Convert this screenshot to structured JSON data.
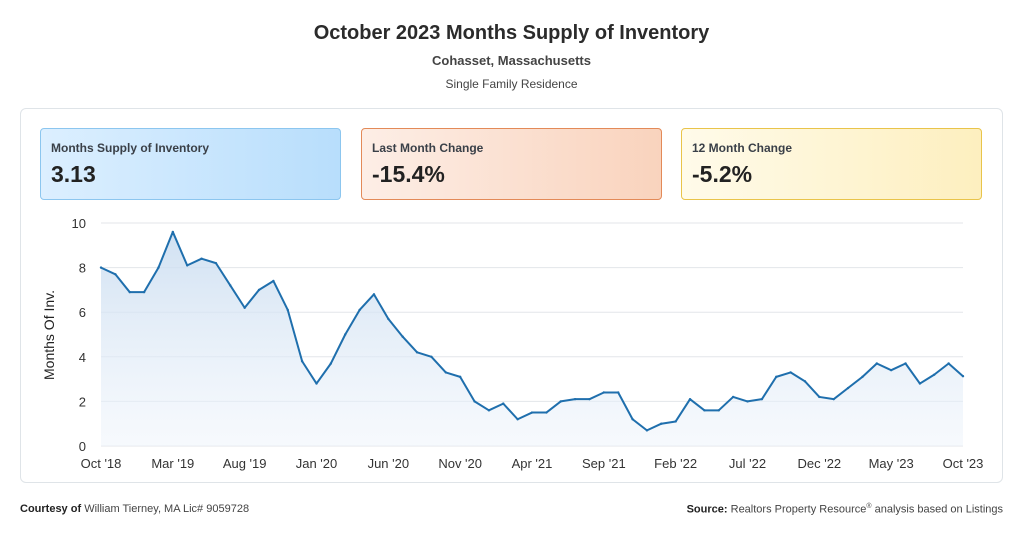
{
  "header": {
    "title": "October 2023 Months Supply of Inventory",
    "subtitle": "Cohasset, Massachusetts",
    "property_type": "Single Family Residence"
  },
  "cards": [
    {
      "label": "Months Supply of Inventory",
      "value": "3.13",
      "color": "#b8defc"
    },
    {
      "label": "Last Month Change",
      "value": "-15.4%",
      "color": "#f9d3bd"
    },
    {
      "label": "12 Month Change",
      "value": "-5.2%",
      "color": "#fdefbf"
    }
  ],
  "chart_data": {
    "type": "area",
    "ylabel": "Months Of Inv.",
    "ylim": [
      0,
      10
    ],
    "yticks": [
      0,
      2,
      4,
      6,
      8,
      10
    ],
    "xlabels": [
      "Oct '18",
      "Mar '19",
      "Aug '19",
      "Jan '20",
      "Jun '20",
      "Nov '20",
      "Apr '21",
      "Sep '21",
      "Feb '22",
      "Jul '22",
      "Dec '22",
      "May '23",
      "Oct '23"
    ],
    "x": [
      "Oct '18",
      "Nov '18",
      "Dec '18",
      "Jan '19",
      "Feb '19",
      "Mar '19",
      "Apr '19",
      "May '19",
      "Jun '19",
      "Jul '19",
      "Aug '19",
      "Sep '19",
      "Oct '19",
      "Nov '19",
      "Dec '19",
      "Jan '20",
      "Feb '20",
      "Mar '20",
      "Apr '20",
      "May '20",
      "Jun '20",
      "Jul '20",
      "Aug '20",
      "Sep '20",
      "Oct '20",
      "Nov '20",
      "Dec '20",
      "Jan '21",
      "Feb '21",
      "Mar '21",
      "Apr '21",
      "May '21",
      "Jun '21",
      "Jul '21",
      "Aug '21",
      "Sep '21",
      "Oct '21",
      "Nov '21",
      "Dec '21",
      "Jan '22",
      "Feb '22",
      "Mar '22",
      "Apr '22",
      "May '22",
      "Jun '22",
      "Jul '22",
      "Aug '22",
      "Sep '22",
      "Oct '22",
      "Nov '22",
      "Dec '22",
      "Jan '23",
      "Feb '23",
      "Mar '23",
      "Apr '23",
      "May '23",
      "Jun '23",
      "Jul '23",
      "Aug '23",
      "Sep '23",
      "Oct '23"
    ],
    "series": [
      {
        "values": [
          8.0,
          7.7,
          6.9,
          6.9,
          8.0,
          9.6,
          8.1,
          8.4,
          8.2,
          7.2,
          6.2,
          7.0,
          7.4,
          6.1,
          3.8,
          2.8,
          3.7,
          5.0,
          6.1,
          6.8,
          5.7,
          4.9,
          4.2,
          4.0,
          3.3,
          3.1,
          2.0,
          1.6,
          1.9,
          1.2,
          1.5,
          1.5,
          2.0,
          2.1,
          2.1,
          2.4,
          2.4,
          1.2,
          0.7,
          1.0,
          1.1,
          2.1,
          1.6,
          1.6,
          2.2,
          2.0,
          2.1,
          3.1,
          3.3,
          2.9,
          2.2,
          2.1,
          2.6,
          3.1,
          3.7,
          3.4,
          3.7,
          2.8,
          3.2,
          3.7,
          3.13
        ],
        "color": "#1f6fad"
      }
    ],
    "grid": true
  },
  "footer": {
    "courtesy_label": "Courtesy of",
    "courtesy_text": "William Tierney, MA Lic# 9059728",
    "source_label": "Source:",
    "source_text_1": "Realtors Property Resource",
    "source_mark": "®",
    "source_text_2": " analysis based on Listings"
  }
}
